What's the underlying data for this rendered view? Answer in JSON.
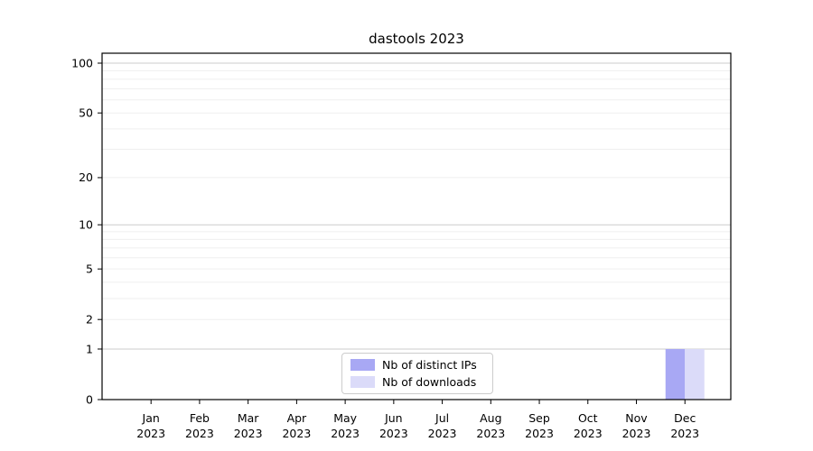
{
  "chart_data": {
    "type": "bar",
    "title": "dastools 2023",
    "categories": [
      "Jan",
      "Feb",
      "Mar",
      "Apr",
      "May",
      "Jun",
      "Jul",
      "Aug",
      "Sep",
      "Oct",
      "Nov",
      "Dec"
    ],
    "category_year": "2023",
    "series": [
      {
        "name": "Nb of distinct IPs",
        "color": "#a8a8f4",
        "values": [
          0,
          0,
          0,
          0,
          0,
          0,
          0,
          0,
          0,
          0,
          0,
          1
        ]
      },
      {
        "name": "Nb of downloads",
        "color": "#dbdbf9",
        "values": [
          0,
          0,
          0,
          0,
          0,
          0,
          0,
          0,
          0,
          0,
          0,
          1
        ]
      }
    ],
    "y_ticks": [
      0,
      1,
      2,
      5,
      10,
      20,
      50,
      100
    ],
    "y_scale": "log1p",
    "ylim": [
      0,
      115
    ],
    "grid": {
      "major_values": [
        1,
        10,
        100
      ],
      "minor_values": [
        2,
        3,
        4,
        5,
        6,
        7,
        8,
        9,
        20,
        30,
        40,
        50,
        60,
        70,
        80,
        90
      ],
      "major_color": "#cccccc",
      "minor_color": "#efefef"
    },
    "legend_position": "lower center",
    "axis_color": "#000000",
    "background_color": "#ffffff"
  }
}
